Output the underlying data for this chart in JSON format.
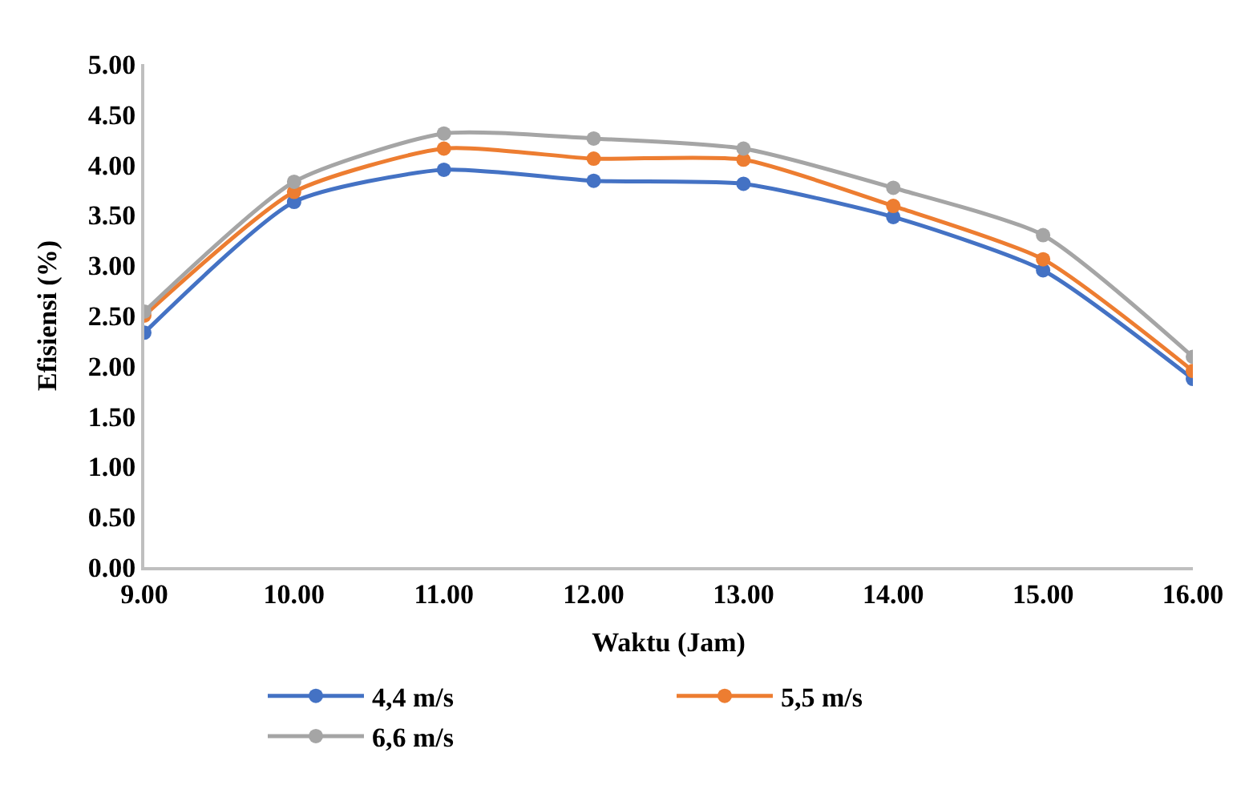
{
  "chart_data": {
    "type": "line",
    "xlabel": "Waktu (Jam)",
    "ylabel": "Efisiensi (%)",
    "x": [
      9,
      10,
      11,
      12,
      13,
      14,
      15,
      16
    ],
    "xlim": [
      9,
      16
    ],
    "xticks": [
      {
        "value": 9,
        "label": "9.00"
      },
      {
        "value": 10,
        "label": "10.00"
      },
      {
        "value": 11,
        "label": "11.00"
      },
      {
        "value": 12,
        "label": "12.00"
      },
      {
        "value": 13,
        "label": "13.00"
      },
      {
        "value": 14,
        "label": "14.00"
      },
      {
        "value": 15,
        "label": "15.00"
      },
      {
        "value": 16,
        "label": "16.00"
      }
    ],
    "ylim": [
      0,
      5
    ],
    "yticks": [
      {
        "value": 0,
        "label": "0.00"
      },
      {
        "value": 0.5,
        "label": "0.50"
      },
      {
        "value": 1,
        "label": "1.00"
      },
      {
        "value": 1.5,
        "label": "1.50"
      },
      {
        "value": 2,
        "label": "2.00"
      },
      {
        "value": 2.5,
        "label": "2.50"
      },
      {
        "value": 3,
        "label": "3.00"
      },
      {
        "value": 3.5,
        "label": "3.50"
      },
      {
        "value": 4,
        "label": "4.00"
      },
      {
        "value": 4.5,
        "label": "4.50"
      },
      {
        "value": 5,
        "label": "5.00"
      }
    ],
    "series": [
      {
        "name": "4,4 m/s",
        "color": "#4472c4",
        "values": [
          2.33,
          3.63,
          3.95,
          3.84,
          3.81,
          3.48,
          2.95,
          1.87
        ]
      },
      {
        "name": "5,5 m/s",
        "color": "#ed7d31",
        "values": [
          2.5,
          3.73,
          4.16,
          4.06,
          4.05,
          3.59,
          3.06,
          1.95
        ]
      },
      {
        "name": "6,6 m/s",
        "color": "#a5a5a5",
        "values": [
          2.54,
          3.83,
          4.31,
          4.26,
          4.16,
          3.77,
          3.3,
          2.09
        ]
      }
    ],
    "legend": "bottom",
    "marker": "circle",
    "line_style": "solid"
  }
}
